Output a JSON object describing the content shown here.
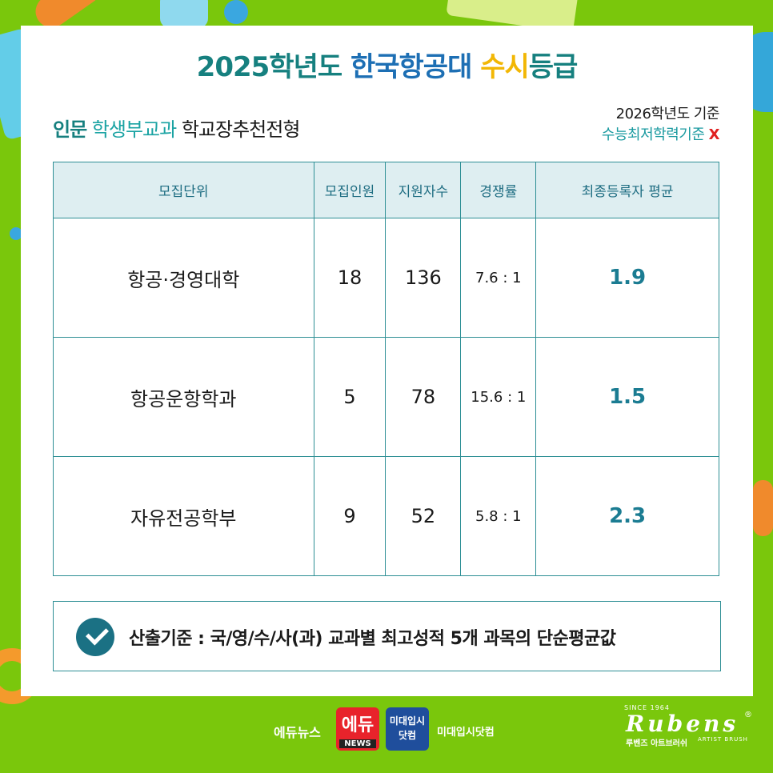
{
  "title": {
    "part1": "2025학년도 ",
    "part2": "한국항공대 ",
    "part3": "수시",
    "part4": "등급"
  },
  "subtitle": {
    "category": "인문",
    "type": " 학생부교과 ",
    "track": "학교장추천전형"
  },
  "basis": {
    "line1": "2026학년도 기준",
    "line2": "수능최저학력기준 ",
    "mark": "X"
  },
  "table": {
    "headers": [
      "모집단위",
      "모집인원",
      "지원자수",
      "경쟁률",
      "최종등록자 평균"
    ],
    "rows": [
      {
        "unit": "항공·경영대학",
        "quota": "18",
        "applicants": "136",
        "ratio": "7.6 : 1",
        "avg": "1.9"
      },
      {
        "unit": "항공운항학과",
        "quota": "5",
        "applicants": "78",
        "ratio": "15.6 : 1",
        "avg": "1.5"
      },
      {
        "unit": "자유전공학부",
        "quota": "9",
        "applicants": "52",
        "ratio": "5.8 : 1",
        "avg": "2.3"
      }
    ]
  },
  "note": {
    "text": "산출기준 : 국/영/수/사(과) 교과별 최고성적 5개 과목의 단순평균값"
  },
  "footer": {
    "edunews": "에듀뉴스",
    "edu_badge_big": "에듀",
    "edu_badge_small": "NEWS",
    "midae_badge_line1": "미대입시",
    "midae_badge_line2": "닷컴",
    "midae": "미대입시닷컴",
    "rubens_since": "SINCE 1964",
    "rubens_logo": "Rubens",
    "rubens_reg": "®",
    "rubens_kr": "루벤즈 아트브러쉬",
    "rubens_en": "ARTIST BRUSH"
  }
}
